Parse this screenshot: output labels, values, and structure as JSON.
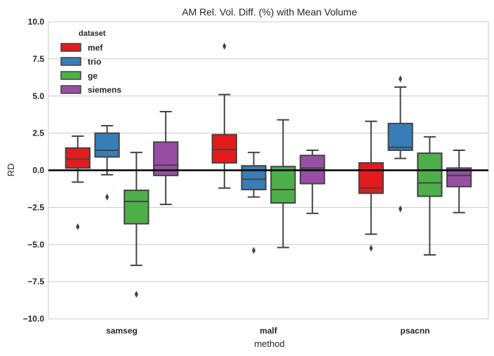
{
  "chart_data": {
    "type": "box",
    "title": "AM Rel. Vol. Diff. (%) with Mean Volume",
    "xlabel": "method",
    "ylabel": "RD",
    "ylim": [
      -10.0,
      10.0
    ],
    "yticks": [
      "10.0",
      "7.5",
      "5.0",
      "2.5",
      "0.0",
      "−2.5",
      "−5.0",
      "−7.5",
      "−10.0"
    ],
    "ytick_values": [
      10.0,
      7.5,
      5.0,
      2.5,
      0.0,
      -2.5,
      -5.0,
      -7.5,
      -10.0
    ],
    "categories": [
      "samseg",
      "malf",
      "psacnn"
    ],
    "reference_line": 0.0,
    "grid": "horizontal",
    "legend": {
      "title": "dataset",
      "placement": "top-left"
    },
    "series": [
      {
        "name": "mef",
        "color": "#e41a1c",
        "boxes": [
          {
            "category": "samseg",
            "whisker_low": -0.8,
            "q1": 0.15,
            "median": 0.75,
            "q3": 1.5,
            "whisker_high": 2.3,
            "outliers": [
              -3.8
            ]
          },
          {
            "category": "malf",
            "whisker_low": -1.2,
            "q1": 0.5,
            "median": 1.4,
            "q3": 2.4,
            "whisker_high": 5.1,
            "outliers": [
              8.35
            ]
          },
          {
            "category": "psacnn",
            "whisker_low": -4.3,
            "q1": -1.55,
            "median": -1.2,
            "q3": 0.5,
            "whisker_high": 3.3,
            "outliers": [
              -5.25
            ]
          }
        ]
      },
      {
        "name": "trio",
        "color": "#377eb8",
        "boxes": [
          {
            "category": "samseg",
            "whisker_low": -0.3,
            "q1": 0.9,
            "median": 1.35,
            "q3": 2.5,
            "whisker_high": 3.0,
            "outliers": [
              -1.8
            ]
          },
          {
            "category": "malf",
            "whisker_low": -1.8,
            "q1": -1.3,
            "median": -0.6,
            "q3": 0.3,
            "whisker_high": 1.2,
            "outliers": [
              -5.4
            ]
          },
          {
            "category": "psacnn",
            "whisker_low": 0.8,
            "q1": 1.35,
            "median": 1.55,
            "q3": 3.15,
            "whisker_high": 5.6,
            "outliers": [
              6.15,
              -2.6
            ]
          }
        ]
      },
      {
        "name": "ge",
        "color": "#4daf4a",
        "boxes": [
          {
            "category": "samseg",
            "whisker_low": -6.4,
            "q1": -3.6,
            "median": -2.1,
            "q3": -1.35,
            "whisker_high": 1.2,
            "outliers": [
              -8.35
            ]
          },
          {
            "category": "malf",
            "whisker_low": -5.2,
            "q1": -2.2,
            "median": -1.3,
            "q3": 0.25,
            "whisker_high": 3.4,
            "outliers": []
          },
          {
            "category": "psacnn",
            "whisker_low": -5.7,
            "q1": -1.75,
            "median": -0.85,
            "q3": 1.15,
            "whisker_high": 2.25,
            "outliers": []
          }
        ]
      },
      {
        "name": "siemens",
        "color": "#984ea3",
        "boxes": [
          {
            "category": "samseg",
            "whisker_low": -2.3,
            "q1": -0.35,
            "median": 0.35,
            "q3": 1.9,
            "whisker_high": 3.95,
            "outliers": []
          },
          {
            "category": "malf",
            "whisker_low": -2.9,
            "q1": -0.9,
            "median": 0.15,
            "q3": 1.0,
            "whisker_high": 1.35,
            "outliers": []
          },
          {
            "category": "psacnn",
            "whisker_low": -2.85,
            "q1": -1.1,
            "median": -0.35,
            "q3": 0.15,
            "whisker_high": 1.35,
            "outliers": []
          }
        ]
      }
    ]
  }
}
